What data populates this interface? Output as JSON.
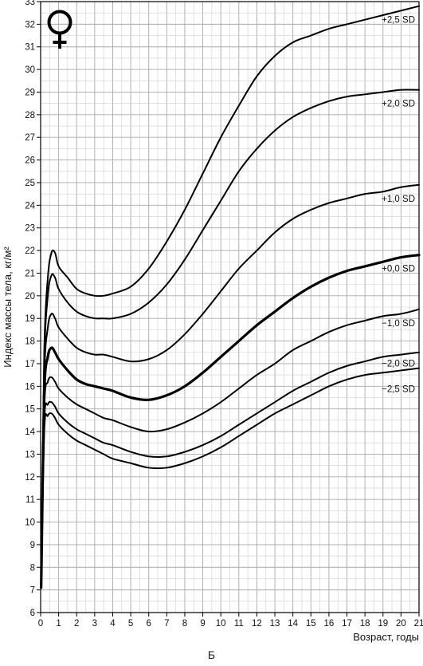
{
  "caption": "Б",
  "chart_data": {
    "type": "line",
    "title": "",
    "xlabel": "Возраст, годы",
    "ylabel": "Индекс массы тела, кг/м²",
    "xlim": [
      0,
      21
    ],
    "ylim": [
      6,
      33
    ],
    "x_ticks": [
      0,
      1,
      2,
      3,
      4,
      5,
      6,
      7,
      8,
      9,
      10,
      11,
      12,
      13,
      14,
      15,
      16,
      17,
      18,
      19,
      20,
      21
    ],
    "y_ticks": [
      6,
      7,
      8,
      9,
      10,
      11,
      12,
      13,
      14,
      15,
      16,
      17,
      18,
      19,
      20,
      21,
      22,
      23,
      24,
      25,
      26,
      27,
      28,
      29,
      30,
      31,
      32,
      33
    ],
    "grid": true,
    "shaded_band": [
      "-2,0 SD",
      "+2,0 SD"
    ],
    "symbol": "female-symbol",
    "colors": {
      "line": "#000000",
      "band": "#e3e3e3",
      "grid": "#b4b4b4"
    },
    "series": [
      {
        "name": "+2,5 SD",
        "x": [
          0.03,
          0.2,
          0.4,
          0.6,
          0.8,
          1,
          1.5,
          2,
          2.5,
          3,
          3.5,
          4,
          5,
          6,
          7,
          8,
          9,
          10,
          11,
          12,
          13,
          14,
          15,
          16,
          17,
          18,
          19,
          20,
          21
        ],
        "values": [
          7.1,
          17.5,
          20.8,
          21.9,
          21.9,
          21.3,
          20.8,
          20.3,
          20.1,
          20.0,
          20.0,
          20.1,
          20.4,
          21.2,
          22.4,
          23.8,
          25.4,
          27.0,
          28.4,
          29.7,
          30.6,
          31.2,
          31.5,
          31.8,
          32.0,
          32.2,
          32.4,
          32.6,
          32.8
        ]
      },
      {
        "name": "+2,0 SD",
        "x": [
          0.03,
          0.2,
          0.4,
          0.6,
          0.8,
          1,
          1.5,
          2,
          2.5,
          3,
          3.5,
          4,
          5,
          6,
          7,
          8,
          9,
          10,
          11,
          12,
          13,
          14,
          15,
          16,
          17,
          18,
          19,
          20,
          21
        ],
        "values": [
          7.1,
          17.0,
          20.0,
          20.9,
          20.8,
          20.3,
          19.7,
          19.3,
          19.1,
          19.0,
          19.0,
          19.0,
          19.2,
          19.7,
          20.5,
          21.6,
          22.9,
          24.2,
          25.5,
          26.5,
          27.3,
          27.9,
          28.3,
          28.6,
          28.8,
          28.9,
          29.0,
          29.1,
          29.1
        ]
      },
      {
        "name": "+1,0 SD",
        "x": [
          0.03,
          0.2,
          0.4,
          0.6,
          0.8,
          1,
          1.5,
          2,
          2.5,
          3,
          3.5,
          4,
          5,
          6,
          7,
          8,
          9,
          10,
          11,
          12,
          13,
          14,
          15,
          16,
          17,
          18,
          19,
          20,
          21
        ],
        "values": [
          7.1,
          16.3,
          18.6,
          19.2,
          19.0,
          18.6,
          18.1,
          17.7,
          17.5,
          17.4,
          17.4,
          17.3,
          17.1,
          17.2,
          17.6,
          18.3,
          19.2,
          20.2,
          21.2,
          22.0,
          22.8,
          23.4,
          23.8,
          24.1,
          24.3,
          24.5,
          24.6,
          24.8,
          24.9
        ]
      },
      {
        "name": "+0,0 SD",
        "x": [
          0.03,
          0.2,
          0.4,
          0.6,
          0.8,
          1,
          1.5,
          2,
          2.5,
          3,
          3.5,
          4,
          5,
          6,
          7,
          8,
          9,
          10,
          11,
          12,
          13,
          14,
          15,
          16,
          17,
          18,
          19,
          20,
          21
        ],
        "values": [
          7.1,
          15.6,
          17.3,
          17.7,
          17.5,
          17.2,
          16.7,
          16.3,
          16.1,
          16.0,
          15.9,
          15.8,
          15.5,
          15.4,
          15.6,
          16.0,
          16.6,
          17.3,
          18.0,
          18.7,
          19.3,
          19.9,
          20.4,
          20.8,
          21.1,
          21.3,
          21.5,
          21.7,
          21.8
        ]
      },
      {
        "name": "−1,0 SD",
        "x": [
          0.03,
          0.2,
          0.4,
          0.6,
          0.8,
          1,
          1.5,
          2,
          2.5,
          3,
          3.5,
          4,
          5,
          6,
          7,
          8,
          9,
          10,
          11,
          12,
          13,
          14,
          15,
          16,
          17,
          18,
          19,
          20,
          21
        ],
        "values": [
          7.1,
          15.0,
          16.2,
          16.4,
          16.2,
          15.9,
          15.5,
          15.2,
          15.0,
          14.8,
          14.6,
          14.5,
          14.2,
          14.0,
          14.1,
          14.4,
          14.8,
          15.3,
          15.9,
          16.5,
          17.0,
          17.6,
          18.0,
          18.4,
          18.7,
          18.9,
          19.1,
          19.2,
          19.4
        ]
      },
      {
        "name": "−2,0 SD",
        "x": [
          0.03,
          0.2,
          0.4,
          0.6,
          0.8,
          1,
          1.5,
          2,
          2.5,
          3,
          3.5,
          4,
          5,
          6,
          7,
          8,
          9,
          10,
          11,
          12,
          13,
          14,
          15,
          16,
          17,
          18,
          19,
          20,
          21
        ],
        "values": [
          7.1,
          14.4,
          15.2,
          15.3,
          15.1,
          14.8,
          14.4,
          14.1,
          13.9,
          13.7,
          13.5,
          13.4,
          13.1,
          12.9,
          12.9,
          13.1,
          13.4,
          13.8,
          14.3,
          14.8,
          15.3,
          15.8,
          16.2,
          16.6,
          16.9,
          17.1,
          17.3,
          17.4,
          17.5
        ]
      },
      {
        "name": "−2,5 SD",
        "x": [
          0.03,
          0.2,
          0.4,
          0.6,
          0.8,
          1,
          1.5,
          2,
          2.5,
          3,
          3.5,
          4,
          5,
          6,
          7,
          8,
          9,
          10,
          11,
          12,
          13,
          14,
          15,
          16,
          17,
          18,
          19,
          20,
          21
        ],
        "values": [
          7.1,
          14.0,
          14.7,
          14.8,
          14.6,
          14.3,
          13.9,
          13.6,
          13.4,
          13.2,
          13.0,
          12.8,
          12.6,
          12.4,
          12.4,
          12.6,
          12.9,
          13.3,
          13.8,
          14.3,
          14.8,
          15.2,
          15.6,
          16.0,
          16.3,
          16.5,
          16.6,
          16.7,
          16.8
        ]
      }
    ]
  }
}
